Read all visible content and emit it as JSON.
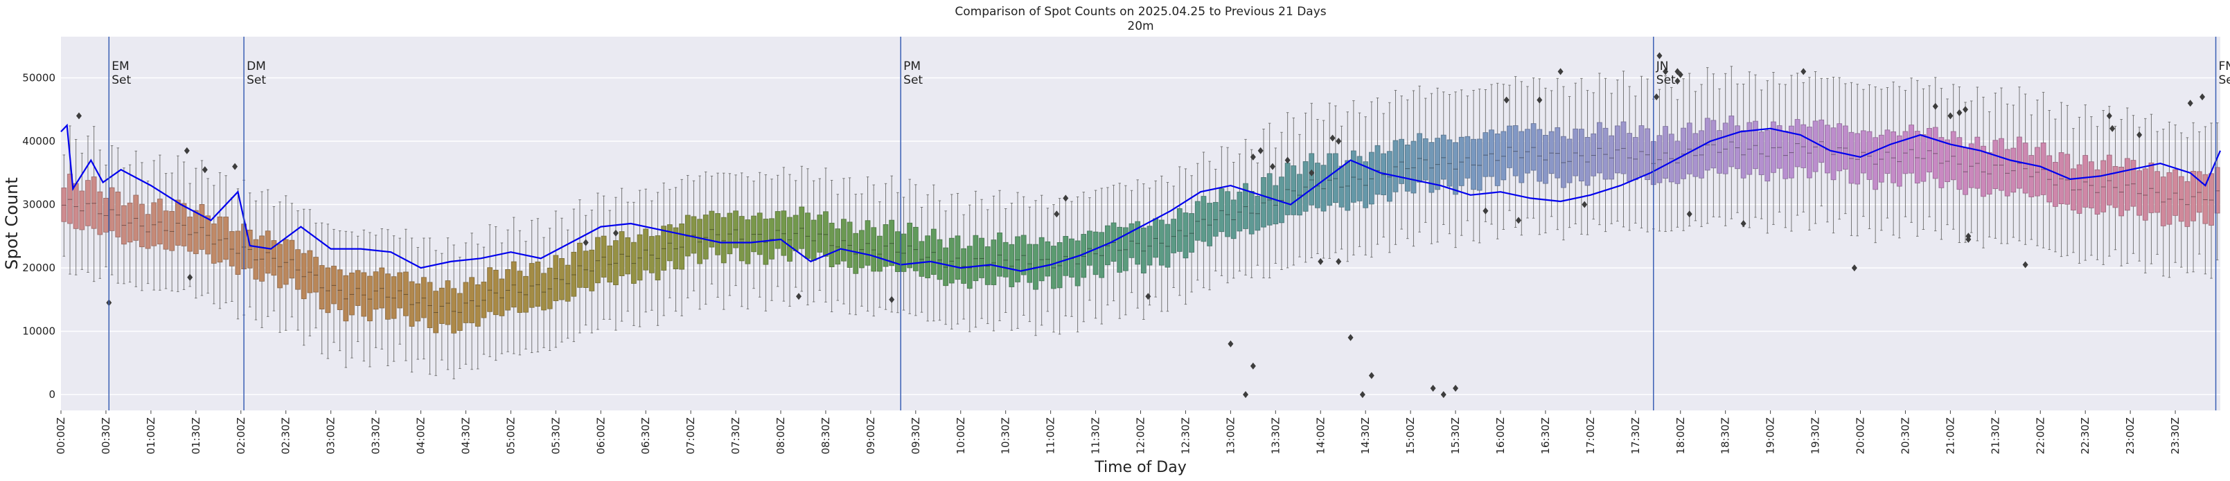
{
  "chart_data": {
    "type": "boxplot_with_line",
    "title_line1": "Comparison of Spot Counts on 2025.04.25 to Previous 21 Days",
    "title_line2": "20m",
    "xlabel": "Time of Day",
    "ylabel": "Spot Count",
    "ylim": [
      -2500,
      56500
    ],
    "yticks": [
      0,
      10000,
      20000,
      30000,
      40000,
      50000
    ],
    "xlim_minutes": [
      0,
      1440
    ],
    "interval_minutes": 4,
    "xtick_labels": [
      "00:00Z",
      "00:30Z",
      "01:00Z",
      "01:30Z",
      "02:00Z",
      "02:30Z",
      "03:00Z",
      "03:30Z",
      "04:00Z",
      "04:30Z",
      "05:00Z",
      "05:30Z",
      "06:00Z",
      "06:30Z",
      "07:00Z",
      "07:30Z",
      "08:00Z",
      "08:30Z",
      "09:00Z",
      "09:30Z",
      "10:00Z",
      "10:30Z",
      "11:00Z",
      "11:30Z",
      "12:00Z",
      "12:30Z",
      "13:00Z",
      "13:30Z",
      "14:00Z",
      "14:30Z",
      "15:00Z",
      "15:30Z",
      "16:00Z",
      "16:30Z",
      "17:00Z",
      "17:30Z",
      "18:00Z",
      "18:30Z",
      "19:00Z",
      "19:30Z",
      "20:00Z",
      "20:30Z",
      "21:00Z",
      "21:30Z",
      "22:00Z",
      "22:30Z",
      "23:00Z",
      "23:30Z"
    ],
    "median_anchors": [
      [
        0,
        30000
      ],
      [
        60,
        27000
      ],
      [
        120,
        23500
      ],
      [
        180,
        17000
      ],
      [
        240,
        14500
      ],
      [
        270,
        14000
      ],
      [
        330,
        18000
      ],
      [
        390,
        22500
      ],
      [
        450,
        25500
      ],
      [
        510,
        24500
      ],
      [
        570,
        22000
      ],
      [
        630,
        20500
      ],
      [
        690,
        22000
      ],
      [
        750,
        25500
      ],
      [
        810,
        31000
      ],
      [
        870,
        34500
      ],
      [
        930,
        37000
      ],
      [
        990,
        38000
      ],
      [
        1050,
        37500
      ],
      [
        1110,
        38500
      ],
      [
        1140,
        39000
      ],
      [
        1200,
        38000
      ],
      [
        1260,
        37000
      ],
      [
        1320,
        34500
      ],
      [
        1380,
        32000
      ],
      [
        1440,
        31000
      ]
    ],
    "today_line_anchors": [
      [
        0,
        41500
      ],
      [
        4,
        42500
      ],
      [
        8,
        32500
      ],
      [
        20,
        37000
      ],
      [
        28,
        33500
      ],
      [
        40,
        35500
      ],
      [
        60,
        33000
      ],
      [
        80,
        30000
      ],
      [
        100,
        27500
      ],
      [
        118,
        32000
      ],
      [
        126,
        23500
      ],
      [
        140,
        23000
      ],
      [
        160,
        26500
      ],
      [
        180,
        23000
      ],
      [
        200,
        23000
      ],
      [
        220,
        22500
      ],
      [
        240,
        20000
      ],
      [
        260,
        21000
      ],
      [
        280,
        21500
      ],
      [
        300,
        22500
      ],
      [
        320,
        21500
      ],
      [
        340,
        24000
      ],
      [
        360,
        26500
      ],
      [
        380,
        27000
      ],
      [
        400,
        26000
      ],
      [
        420,
        25000
      ],
      [
        440,
        24000
      ],
      [
        460,
        24000
      ],
      [
        480,
        24500
      ],
      [
        500,
        21000
      ],
      [
        520,
        23000
      ],
      [
        540,
        22000
      ],
      [
        560,
        20500
      ],
      [
        580,
        21000
      ],
      [
        600,
        20000
      ],
      [
        620,
        20500
      ],
      [
        640,
        19500
      ],
      [
        660,
        20500
      ],
      [
        680,
        22000
      ],
      [
        700,
        24000
      ],
      [
        720,
        26500
      ],
      [
        740,
        29000
      ],
      [
        760,
        32000
      ],
      [
        780,
        33000
      ],
      [
        800,
        31500
      ],
      [
        820,
        30000
      ],
      [
        840,
        33500
      ],
      [
        860,
        37000
      ],
      [
        880,
        35000
      ],
      [
        900,
        34000
      ],
      [
        920,
        33000
      ],
      [
        940,
        31500
      ],
      [
        960,
        32000
      ],
      [
        980,
        31000
      ],
      [
        1000,
        30500
      ],
      [
        1020,
        31500
      ],
      [
        1040,
        33000
      ],
      [
        1060,
        35000
      ],
      [
        1080,
        37500
      ],
      [
        1100,
        40000
      ],
      [
        1120,
        41500
      ],
      [
        1140,
        42000
      ],
      [
        1160,
        41000
      ],
      [
        1180,
        38500
      ],
      [
        1200,
        37500
      ],
      [
        1220,
        39500
      ],
      [
        1240,
        41000
      ],
      [
        1260,
        39500
      ],
      [
        1280,
        38500
      ],
      [
        1300,
        37000
      ],
      [
        1320,
        36000
      ],
      [
        1340,
        34000
      ],
      [
        1360,
        34500
      ],
      [
        1380,
        35500
      ],
      [
        1400,
        36500
      ],
      [
        1420,
        35000
      ],
      [
        1430,
        33000
      ],
      [
        1440,
        38500
      ]
    ],
    "events": [
      {
        "label": "EM\nSet",
        "minute": 32
      },
      {
        "label": "DM\nSet",
        "minute": 122
      },
      {
        "label": "PM\nSet",
        "minute": 560
      },
      {
        "label": "JN\nSet",
        "minute": 1062
      },
      {
        "label": "FN\nSet",
        "minute": 1437
      }
    ],
    "outliers": [
      [
        12,
        44000
      ],
      [
        32,
        14500
      ],
      [
        84,
        38500
      ],
      [
        96,
        35500
      ],
      [
        116,
        36000
      ],
      [
        86,
        18500
      ],
      [
        350,
        24000
      ],
      [
        370,
        25500
      ],
      [
        492,
        15500
      ],
      [
        554,
        15000
      ],
      [
        664,
        28500
      ],
      [
        670,
        31000
      ],
      [
        725,
        15500
      ],
      [
        780,
        8000
      ],
      [
        790,
        0
      ],
      [
        795,
        4500
      ],
      [
        795,
        37500
      ],
      [
        800,
        38500
      ],
      [
        808,
        36000
      ],
      [
        818,
        37000
      ],
      [
        834,
        35000
      ],
      [
        840,
        21000
      ],
      [
        848,
        40500
      ],
      [
        852,
        40000
      ],
      [
        852,
        21000
      ],
      [
        860,
        9000
      ],
      [
        868,
        0
      ],
      [
        874,
        3000
      ],
      [
        915,
        1000
      ],
      [
        922,
        0
      ],
      [
        930,
        1000
      ],
      [
        950,
        29000
      ],
      [
        964,
        46500
      ],
      [
        972,
        27500
      ],
      [
        986,
        46500
      ],
      [
        1000,
        51000
      ],
      [
        1016,
        30000
      ],
      [
        1064,
        47000
      ],
      [
        1066,
        53500
      ],
      [
        1070,
        51000
      ],
      [
        1078,
        51000
      ],
      [
        1078,
        49500
      ],
      [
        1080,
        50500
      ],
      [
        1086,
        28500
      ],
      [
        1122,
        27000
      ],
      [
        1162,
        51000
      ],
      [
        1196,
        20000
      ],
      [
        1250,
        45500
      ],
      [
        1260,
        44000
      ],
      [
        1266,
        44500
      ],
      [
        1270,
        45000
      ],
      [
        1272,
        25000
      ],
      [
        1272,
        24500
      ],
      [
        1310,
        20500
      ],
      [
        1366,
        44000
      ],
      [
        1368,
        42000
      ],
      [
        1386,
        41000
      ],
      [
        1420,
        46000
      ],
      [
        1428,
        47000
      ]
    ],
    "palette": [
      "#ce8b90",
      "#c08a69",
      "#b78654",
      "#a98a45",
      "#939244",
      "#74994b",
      "#5f9a5c",
      "#5a9b73",
      "#5d9a8d",
      "#6498a7",
      "#7e98c4",
      "#a196cd",
      "#b88fd0",
      "#c889c4",
      "#cf87a7",
      "#d08a96"
    ],
    "line_color": "#0000ee",
    "event_color": "#3a5fb4",
    "background": "#eaeaf2",
    "grid": true
  }
}
